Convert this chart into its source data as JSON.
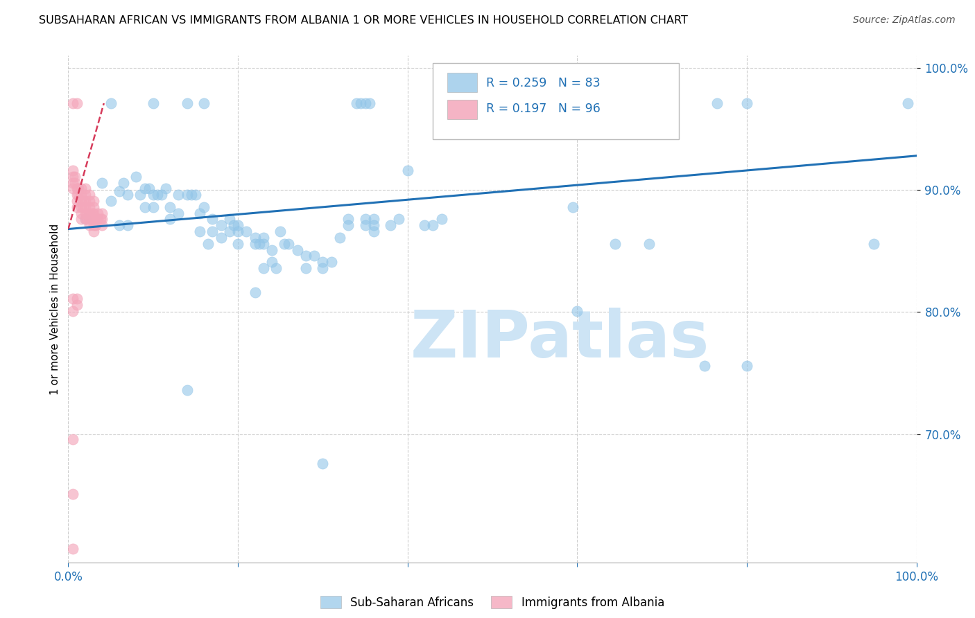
{
  "title": "SUBSAHARAN AFRICAN VS IMMIGRANTS FROM ALBANIA 1 OR MORE VEHICLES IN HOUSEHOLD CORRELATION CHART",
  "source": "Source: ZipAtlas.com",
  "ylabel": "1 or more Vehicles in Household",
  "legend1_label": "Sub-Saharan Africans",
  "legend2_label": "Immigrants from Albania",
  "R1": "0.259",
  "N1": "83",
  "R2": "0.197",
  "N2": "96",
  "blue_color": "#92c5e8",
  "pink_color": "#f4a7bb",
  "trendline_blue": "#2171b5",
  "trendline_pink": "#d63a5a",
  "watermark": "ZIPatlas",
  "watermark_color": "#cde4f5",
  "blue_scatter": [
    [
      0.02,
      0.876
    ],
    [
      0.04,
      0.906
    ],
    [
      0.05,
      0.891
    ],
    [
      0.06,
      0.899
    ],
    [
      0.065,
      0.906
    ],
    [
      0.07,
      0.896
    ],
    [
      0.08,
      0.911
    ],
    [
      0.085,
      0.896
    ],
    [
      0.09,
      0.901
    ],
    [
      0.09,
      0.886
    ],
    [
      0.095,
      0.901
    ],
    [
      0.1,
      0.896
    ],
    [
      0.1,
      0.886
    ],
    [
      0.105,
      0.896
    ],
    [
      0.11,
      0.896
    ],
    [
      0.115,
      0.901
    ],
    [
      0.12,
      0.886
    ],
    [
      0.12,
      0.876
    ],
    [
      0.13,
      0.896
    ],
    [
      0.13,
      0.881
    ],
    [
      0.14,
      0.896
    ],
    [
      0.145,
      0.896
    ],
    [
      0.15,
      0.896
    ],
    [
      0.155,
      0.881
    ],
    [
      0.16,
      0.886
    ],
    [
      0.17,
      0.876
    ],
    [
      0.17,
      0.866
    ],
    [
      0.18,
      0.871
    ],
    [
      0.18,
      0.861
    ],
    [
      0.19,
      0.876
    ],
    [
      0.195,
      0.871
    ],
    [
      0.19,
      0.866
    ],
    [
      0.2,
      0.871
    ],
    [
      0.2,
      0.866
    ],
    [
      0.2,
      0.856
    ],
    [
      0.21,
      0.866
    ],
    [
      0.22,
      0.861
    ],
    [
      0.22,
      0.856
    ],
    [
      0.225,
      0.856
    ],
    [
      0.23,
      0.861
    ],
    [
      0.23,
      0.856
    ],
    [
      0.24,
      0.851
    ],
    [
      0.25,
      0.866
    ],
    [
      0.255,
      0.856
    ],
    [
      0.26,
      0.856
    ],
    [
      0.27,
      0.851
    ],
    [
      0.28,
      0.846
    ],
    [
      0.28,
      0.836
    ],
    [
      0.29,
      0.846
    ],
    [
      0.3,
      0.841
    ],
    [
      0.3,
      0.836
    ],
    [
      0.31,
      0.841
    ],
    [
      0.33,
      0.876
    ],
    [
      0.33,
      0.871
    ],
    [
      0.35,
      0.876
    ],
    [
      0.35,
      0.871
    ],
    [
      0.36,
      0.876
    ],
    [
      0.36,
      0.871
    ],
    [
      0.36,
      0.866
    ],
    [
      0.38,
      0.871
    ],
    [
      0.39,
      0.876
    ],
    [
      0.4,
      0.916
    ],
    [
      0.42,
      0.871
    ],
    [
      0.43,
      0.871
    ],
    [
      0.155,
      0.866
    ],
    [
      0.165,
      0.856
    ],
    [
      0.23,
      0.836
    ],
    [
      0.24,
      0.841
    ],
    [
      0.245,
      0.836
    ],
    [
      0.32,
      0.861
    ],
    [
      0.44,
      0.876
    ],
    [
      0.05,
      0.971
    ],
    [
      0.1,
      0.971
    ],
    [
      0.14,
      0.971
    ],
    [
      0.16,
      0.971
    ],
    [
      0.34,
      0.971
    ],
    [
      0.345,
      0.971
    ],
    [
      0.35,
      0.971
    ],
    [
      0.355,
      0.971
    ],
    [
      0.765,
      0.971
    ],
    [
      0.8,
      0.971
    ],
    [
      0.99,
      0.971
    ],
    [
      0.595,
      0.886
    ],
    [
      0.645,
      0.856
    ],
    [
      0.685,
      0.856
    ],
    [
      0.6,
      0.801
    ],
    [
      0.75,
      0.756
    ],
    [
      0.8,
      0.756
    ],
    [
      0.14,
      0.736
    ],
    [
      0.3,
      0.676
    ],
    [
      0.95,
      0.856
    ],
    [
      0.07,
      0.871
    ],
    [
      0.06,
      0.871
    ],
    [
      0.22,
      0.816
    ]
  ],
  "pink_scatter": [
    [
      0.005,
      0.971
    ],
    [
      0.01,
      0.971
    ],
    [
      0.005,
      0.916
    ],
    [
      0.005,
      0.911
    ],
    [
      0.005,
      0.906
    ],
    [
      0.005,
      0.901
    ],
    [
      0.008,
      0.911
    ],
    [
      0.008,
      0.906
    ],
    [
      0.01,
      0.901
    ],
    [
      0.01,
      0.896
    ],
    [
      0.01,
      0.891
    ],
    [
      0.01,
      0.886
    ],
    [
      0.012,
      0.901
    ],
    [
      0.012,
      0.896
    ],
    [
      0.015,
      0.901
    ],
    [
      0.015,
      0.896
    ],
    [
      0.015,
      0.891
    ],
    [
      0.015,
      0.886
    ],
    [
      0.015,
      0.881
    ],
    [
      0.015,
      0.876
    ],
    [
      0.018,
      0.891
    ],
    [
      0.018,
      0.886
    ],
    [
      0.02,
      0.901
    ],
    [
      0.02,
      0.896
    ],
    [
      0.02,
      0.891
    ],
    [
      0.02,
      0.886
    ],
    [
      0.02,
      0.881
    ],
    [
      0.02,
      0.876
    ],
    [
      0.022,
      0.881
    ],
    [
      0.022,
      0.876
    ],
    [
      0.025,
      0.896
    ],
    [
      0.025,
      0.891
    ],
    [
      0.025,
      0.886
    ],
    [
      0.025,
      0.881
    ],
    [
      0.025,
      0.876
    ],
    [
      0.025,
      0.871
    ],
    [
      0.028,
      0.881
    ],
    [
      0.028,
      0.876
    ],
    [
      0.03,
      0.891
    ],
    [
      0.03,
      0.886
    ],
    [
      0.03,
      0.881
    ],
    [
      0.03,
      0.876
    ],
    [
      0.03,
      0.871
    ],
    [
      0.03,
      0.866
    ],
    [
      0.032,
      0.876
    ],
    [
      0.032,
      0.871
    ],
    [
      0.035,
      0.881
    ],
    [
      0.035,
      0.876
    ],
    [
      0.038,
      0.876
    ],
    [
      0.04,
      0.881
    ],
    [
      0.04,
      0.876
    ],
    [
      0.04,
      0.871
    ],
    [
      0.005,
      0.811
    ],
    [
      0.005,
      0.801
    ],
    [
      0.01,
      0.811
    ],
    [
      0.01,
      0.806
    ],
    [
      0.005,
      0.696
    ],
    [
      0.005,
      0.651
    ],
    [
      0.005,
      0.606
    ]
  ],
  "blue_trend": [
    0.0,
    1.0,
    0.868,
    0.928
  ],
  "pink_trend": [
    0.0,
    0.042,
    0.868,
    0.971
  ],
  "xlim": [
    0.0,
    1.0
  ],
  "ylim": [
    0.595,
    1.01
  ],
  "yticks": [
    0.7,
    0.8,
    0.9,
    1.0
  ],
  "ytick_labels": [
    "70.0%",
    "80.0%",
    "90.0%",
    "100.0%"
  ],
  "xticks": [
    0.0,
    0.2,
    0.4,
    0.6,
    0.8,
    1.0
  ],
  "xtick_labels_show": [
    "0.0%",
    "",
    "",
    "",
    "",
    "100.0%"
  ]
}
